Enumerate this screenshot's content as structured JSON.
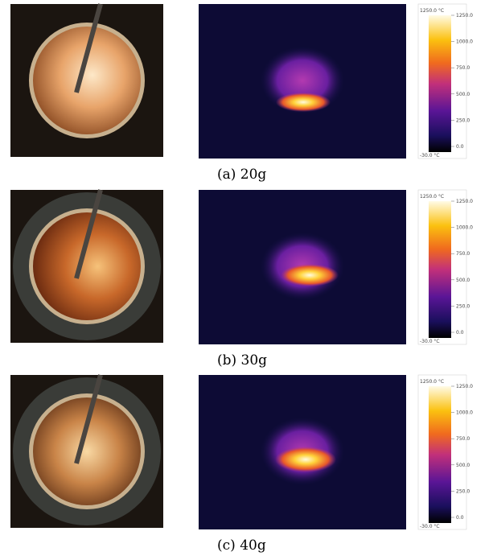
{
  "panels": [
    {
      "caption": "(a) 20g",
      "colorbar": {
        "top_label": "1250.0 °C",
        "bottom_label": "-30.0 °C",
        "ticks": [
          "1250.0",
          "1000.0",
          "750.0",
          "500.0",
          "250.0",
          "0.0"
        ]
      }
    },
    {
      "caption": "(b) 30g",
      "colorbar": {
        "top_label": "1250.0 °C",
        "bottom_label": "-30.0 °C",
        "ticks": [
          "1250.0",
          "1000.0",
          "750.0",
          "500.0",
          "250.0",
          "0.0"
        ]
      }
    },
    {
      "caption": "(c) 40g",
      "colorbar": {
        "top_label": "1250.0 °C",
        "bottom_label": "-30.0 °C",
        "ticks": [
          "1250.0",
          "1000.0",
          "750.0",
          "500.0",
          "250.0",
          "0.0"
        ]
      }
    }
  ]
}
